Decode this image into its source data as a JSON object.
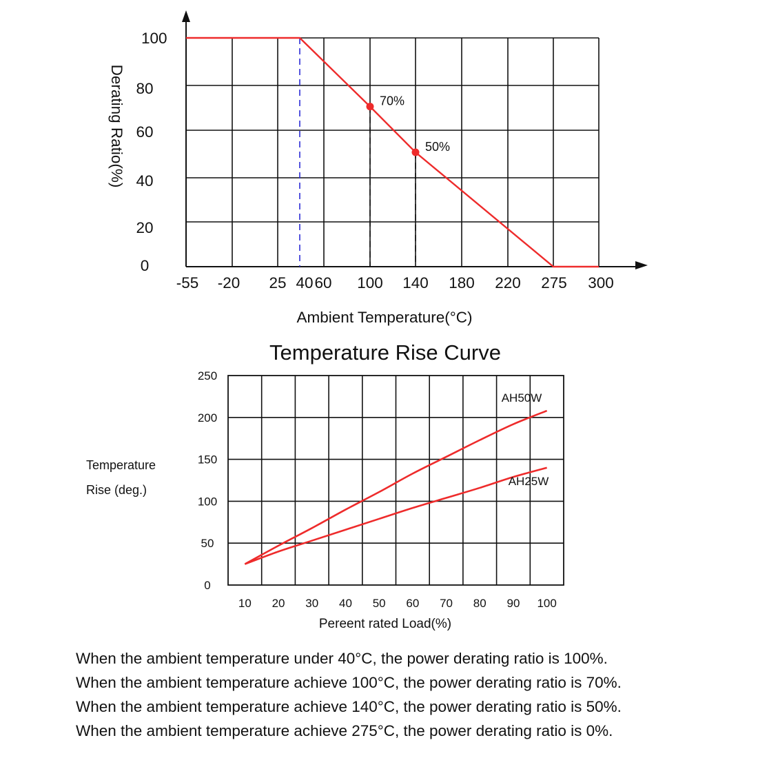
{
  "chart_data": [
    {
      "type": "line",
      "title": "",
      "xlabel": "Ambient Temperature(°C)",
      "ylabel": "Derating Ratio(%)",
      "x_tick_labels": [
        "-55",
        "-20",
        "25",
        "40",
        "60",
        "100",
        "140",
        "180",
        "220",
        "275",
        "300"
      ],
      "y_tick_labels": [
        "100",
        "80",
        "60",
        "40",
        "20",
        "0"
      ],
      "ylim": [
        0,
        100
      ],
      "grid": true,
      "line_color": "#ee2b2b",
      "series": [
        {
          "x": [
            -55,
            40,
            100,
            140,
            275,
            300
          ],
          "y": [
            100,
            100,
            70,
            50,
            0,
            0
          ]
        }
      ],
      "points": [
        {
          "x": 100,
          "y": 70,
          "label": "70%"
        },
        {
          "x": 140,
          "y": 50,
          "label": "50%"
        }
      ],
      "reference_lines": [
        {
          "x": 40,
          "color": "#2b2bd6",
          "style": "dashed"
        },
        {
          "x": 100,
          "color": "#111111",
          "style": "dashed"
        },
        {
          "x": 140,
          "color": "#111111",
          "style": "dashed"
        }
      ]
    },
    {
      "type": "line",
      "title": "Temperature Rise Curve",
      "xlabel": "Pereent rated Load(%)",
      "ylabel": "Temperature Rise (deg.)",
      "ylabel_lines": [
        "Temperature",
        "Rise (deg.)"
      ],
      "x_ticks": [
        10,
        20,
        30,
        40,
        50,
        60,
        70,
        80,
        90,
        100
      ],
      "y_ticks": [
        0,
        50,
        100,
        150,
        200,
        250
      ],
      "xlim": [
        5,
        105
      ],
      "ylim": [
        0,
        250
      ],
      "grid": true,
      "line_color": "#ee2b2b",
      "series": [
        {
          "name": "AH50W",
          "x": [
            10,
            20,
            30,
            40,
            50,
            60,
            70,
            80,
            90,
            100
          ],
          "y": [
            25,
            47,
            68,
            90,
            111,
            133,
            153,
            173,
            192,
            208
          ]
        },
        {
          "name": "AH25W",
          "x": [
            10,
            20,
            30,
            40,
            50,
            60,
            70,
            80,
            90,
            100
          ],
          "y": [
            25,
            40,
            53,
            66,
            79,
            92,
            104,
            116,
            129,
            140
          ]
        }
      ]
    }
  ],
  "notes": [
    "When the ambient temperature under 40°C, the power derating ratio is 100%.",
    "When the ambient temperature achieve 100°C, the power derating ratio is 70%.",
    "When the ambient temperature achieve 140°C, the power derating ratio is 50%.",
    "When the ambient temperature achieve 275°C, the power derating ratio is 0%."
  ]
}
